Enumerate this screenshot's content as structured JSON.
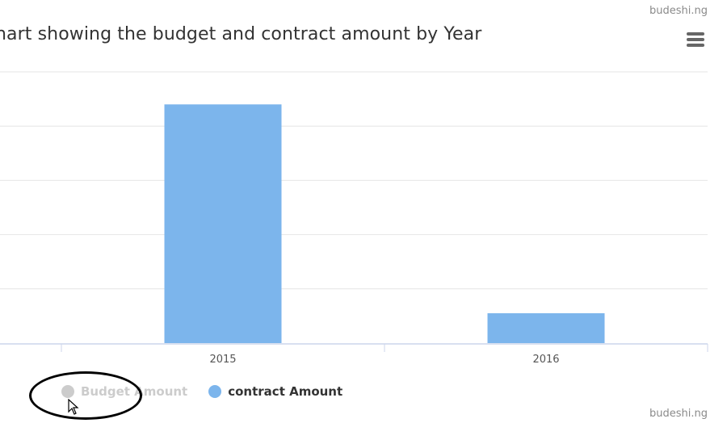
{
  "watermark": "budeshi.ng",
  "title": "hart showing the budget and contract amount by Year",
  "menu_icon": "hamburger-menu-icon",
  "chart_data": {
    "type": "bar",
    "categories": [
      "2015",
      "2016"
    ],
    "ylim": [
      0,
      5
    ],
    "grid": true,
    "legend_position": "bottom-left",
    "series": [
      {
        "name": "Budget Amount",
        "values": [
          null,
          null
        ],
        "visible": false,
        "color": "#cccccc"
      },
      {
        "name": "contract Amount",
        "values": [
          4.4,
          0.55
        ],
        "visible": true,
        "color": "#7cb5ec"
      }
    ]
  },
  "colors": {
    "bar": "#7cb5ec",
    "grid": "#e6e6e6",
    "axis": "#ccd6eb",
    "legend_hidden": "#cccccc",
    "legend_shown": "#333333"
  }
}
